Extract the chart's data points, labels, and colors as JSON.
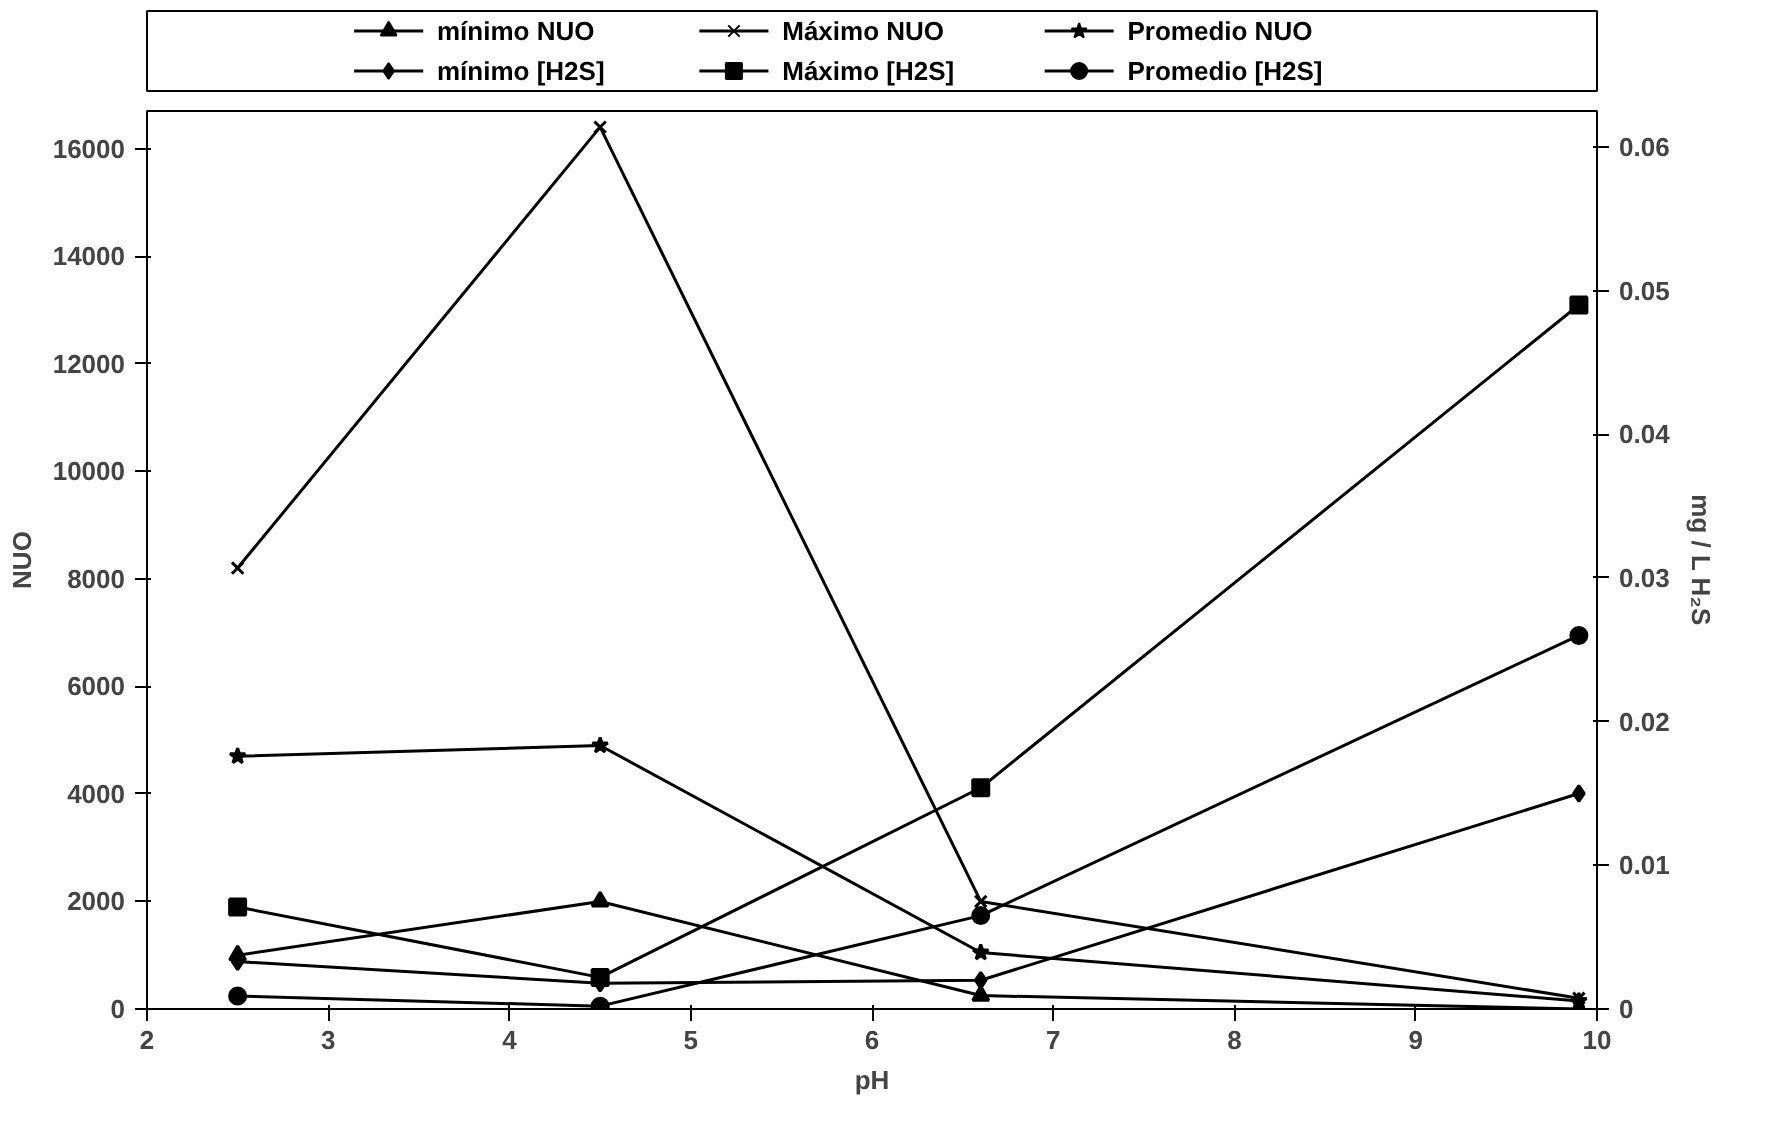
{
  "chart_data": {
    "type": "line",
    "xlabel": "pH",
    "ylabel": "NUO",
    "y2label": "mg / L H₂S",
    "xlim": [
      2,
      10
    ],
    "xticks": [
      2,
      3,
      4,
      5,
      6,
      7,
      8,
      9,
      10
    ],
    "ylim": [
      0,
      16700
    ],
    "yticks": [
      0,
      2000,
      4000,
      6000,
      8000,
      10000,
      12000,
      14000,
      16000
    ],
    "y2lim": [
      0,
      0.0625
    ],
    "y2ticks": [
      0,
      0.01,
      0.02,
      0.03,
      0.04,
      0.05,
      0.06
    ],
    "grid": false,
    "legend": "top",
    "line_style": "solid",
    "x": [
      2.5,
      4.5,
      6.6,
      9.9
    ],
    "series": [
      {
        "name": "mínimo NUO",
        "color": "#000000",
        "marker": "triangle",
        "values": [
          1000,
          2000,
          250,
          0
        ]
      },
      {
        "name": "Máximo NUO",
        "color": "#000000",
        "marker": "cross",
        "values": [
          8200,
          16400,
          2000,
          200
        ]
      },
      {
        "name": "Promedio NUO",
        "color": "#000000",
        "marker": "star",
        "values": [
          4700,
          4900,
          1050,
          150
        ]
      },
      {
        "name": "mínimo [H2S]",
        "color": "#000000",
        "marker": "diamond",
        "axis": "y2",
        "values": [
          0.0033,
          0.0018,
          0.002,
          0.015
        ]
      },
      {
        "name": "Máximo [H2S]",
        "color": "#000000",
        "marker": "square",
        "axis": "y2",
        "values": [
          0.0071,
          0.0022,
          0.0154,
          0.049
        ]
      },
      {
        "name": "Promedio [H2S]",
        "color": "#000000",
        "marker": "circle",
        "axis": "y2",
        "values": [
          0.0009,
          0.0002,
          0.0065,
          0.026
        ]
      }
    ]
  }
}
